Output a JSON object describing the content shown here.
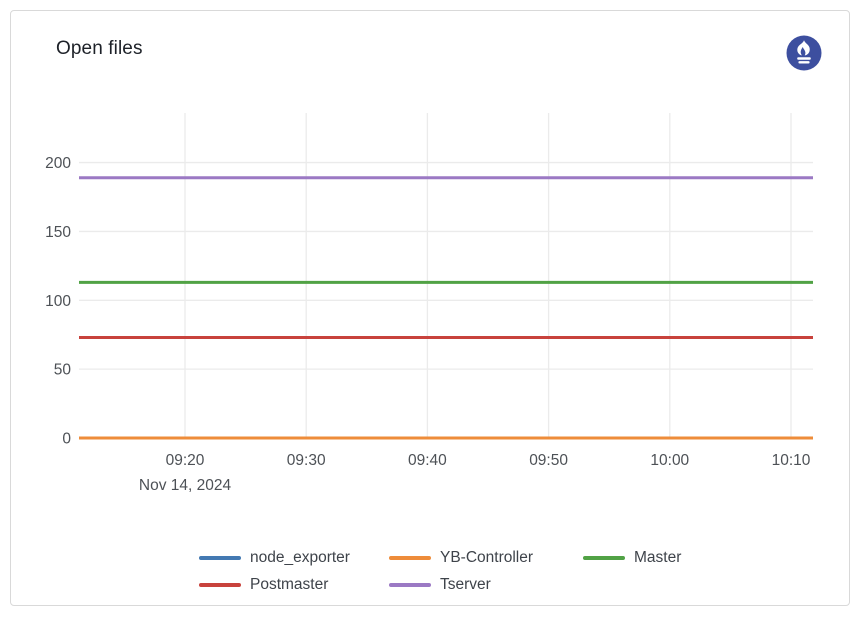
{
  "panel": {
    "title": "Open files",
    "logo": "prometheus"
  },
  "chart_data": {
    "type": "line",
    "title": "Open files",
    "x_date_label": "Nov 14, 2024",
    "x_ticks": [
      "09:20",
      "09:30",
      "09:40",
      "09:50",
      "10:00",
      "10:10"
    ],
    "y_ticks": [
      0,
      50,
      100,
      150,
      200
    ],
    "ylim": [
      0,
      236
    ],
    "grid": true,
    "legend_position": "bottom",
    "series": [
      {
        "name": "node_exporter",
        "color": "#4379b2",
        "value": 0
      },
      {
        "name": "YB-Controller",
        "color": "#ee8c3a",
        "value": 0
      },
      {
        "name": "Master",
        "color": "#51a245",
        "value": 113
      },
      {
        "name": "Postmaster",
        "color": "#c8423c",
        "value": 73
      },
      {
        "name": "Tserver",
        "color": "#9b79c4",
        "value": 189
      }
    ],
    "colors": {
      "grid": "#ebebeb",
      "tick_text": "#4d5156",
      "logo_blue": "#3d4f9f"
    }
  }
}
